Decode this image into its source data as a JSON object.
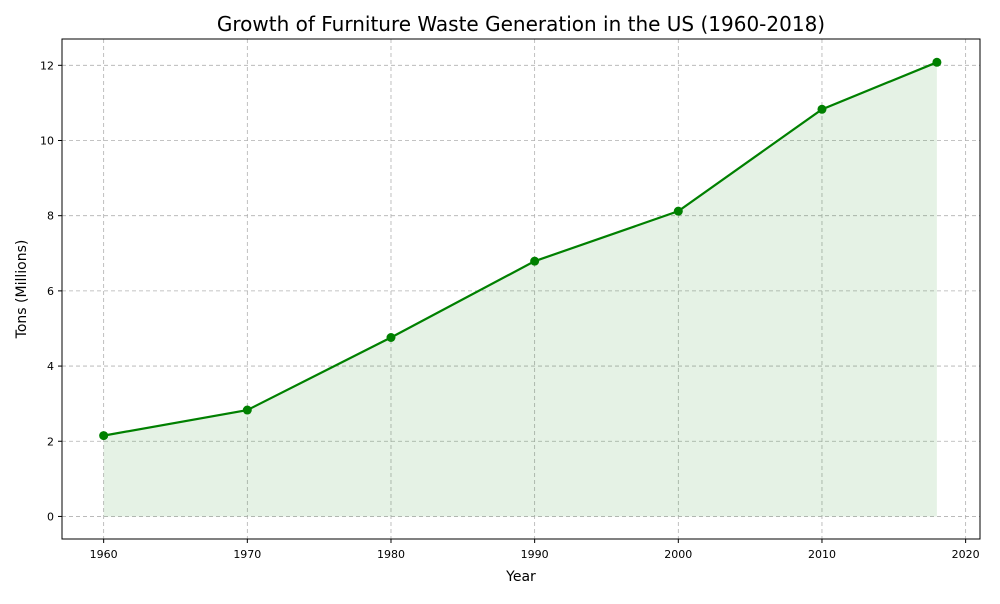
{
  "chart_data": {
    "type": "line",
    "title": "Growth of Furniture Waste Generation in the US (1960-2018)",
    "xlabel": "Year",
    "ylabel": "Tons (Millions)",
    "x": [
      1960,
      1970,
      1980,
      1990,
      2000,
      2010,
      2018
    ],
    "series": [
      {
        "values": [
          2.15,
          2.83,
          4.76,
          6.79,
          8.12,
          10.83,
          12.08
        ],
        "color": "#008000",
        "fill_color": "#008000",
        "fill_opacity": 0.1,
        "marker": "circle"
      }
    ],
    "xlim": [
      1957.1,
      2021.0
    ],
    "ylim": [
      -0.6,
      12.7
    ],
    "xticks": [
      1960,
      1970,
      1980,
      1990,
      2000,
      2010,
      2020
    ],
    "yticks": [
      0,
      2,
      4,
      6,
      8,
      10,
      12
    ],
    "grid": true,
    "grid_style": "dashed",
    "legend": "none"
  }
}
